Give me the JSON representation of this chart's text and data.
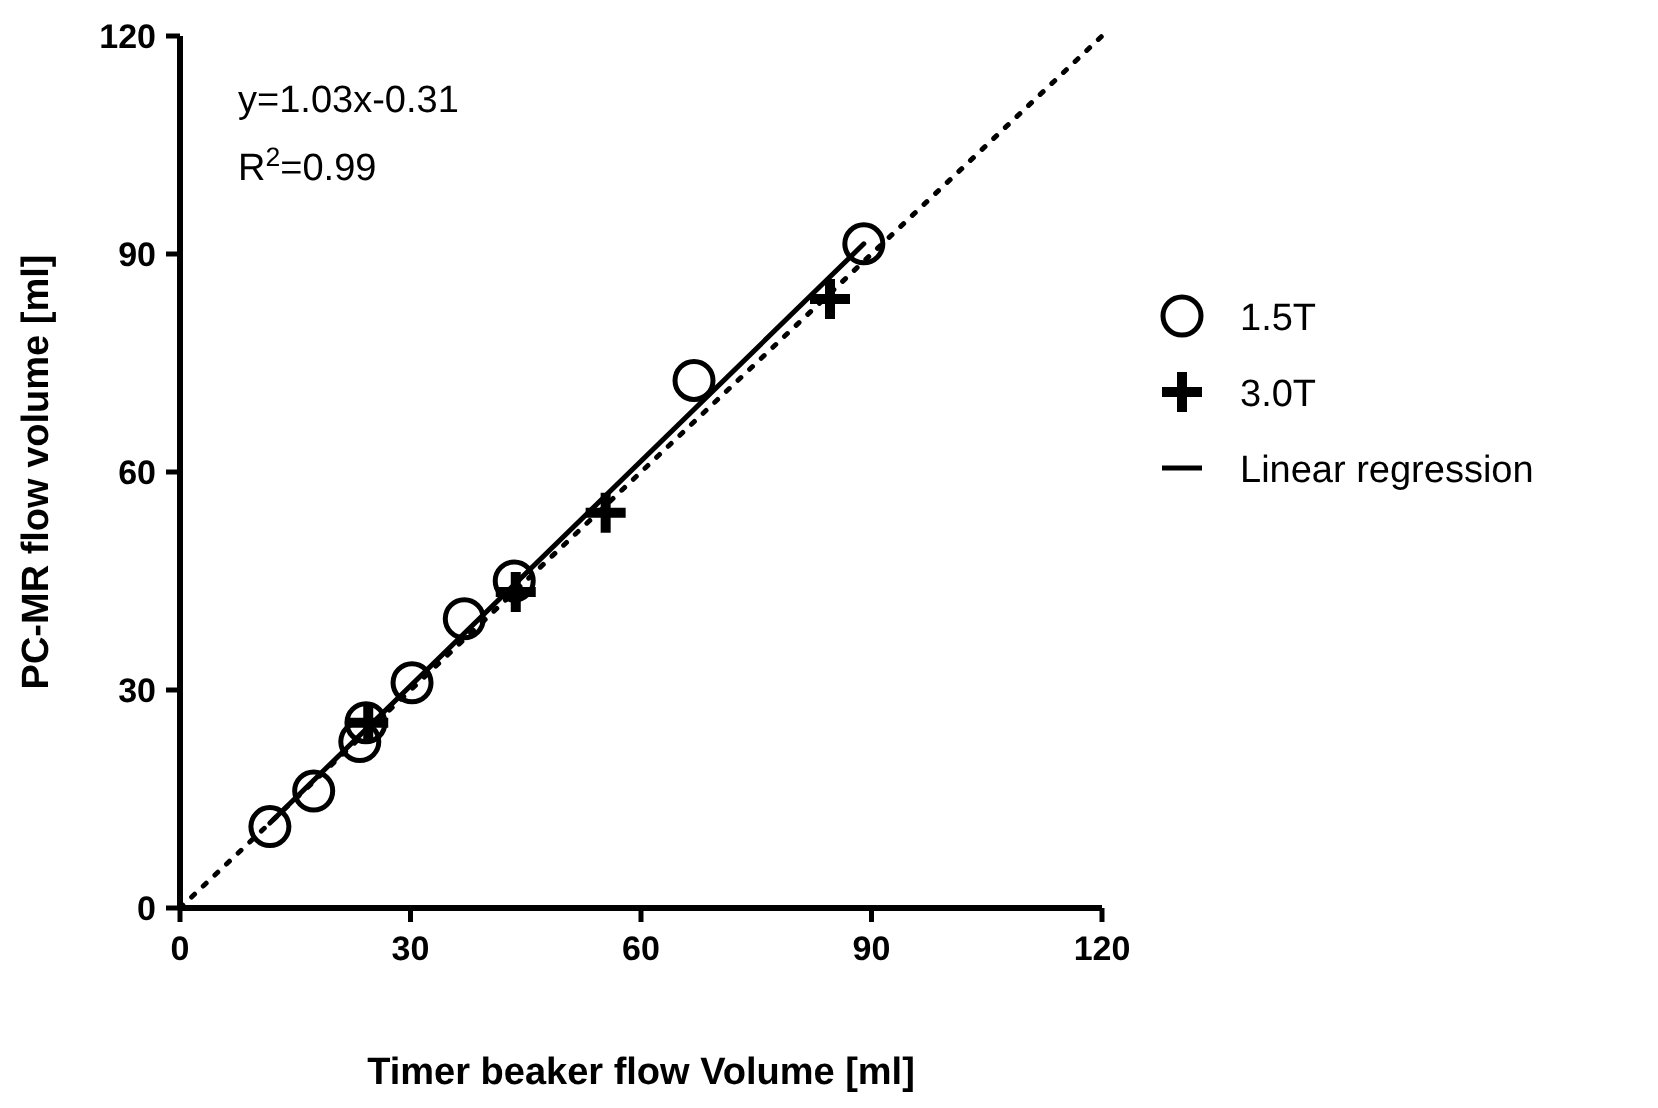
{
  "chart_data": {
    "type": "scatter",
    "xlabel": "Timer beaker flow Volume [ml]",
    "ylabel": "PC-MR flow volume [ml]",
    "xlim": [
      0,
      120
    ],
    "ylim": [
      0,
      120
    ],
    "xticks": [
      0,
      30,
      60,
      90,
      120
    ],
    "yticks": [
      0,
      30,
      60,
      90,
      120
    ],
    "grid": false,
    "legend": "right",
    "annotations": [
      "y=1.03x-0.31",
      "R$^{2}$=0.99"
    ],
    "series": [
      {
        "type": "line",
        "color": "#000000",
        "line_style": "dotted",
        "marker": "none",
        "x": [
          0,
          120
        ],
        "values": [
          0,
          120
        ]
      },
      {
        "name": "1.5T",
        "color": "#000000",
        "marker": "circle",
        "x": [
          11.7,
          17.4,
          23.4,
          24.2,
          30.2,
          37.0,
          43.5,
          66.9,
          89.0
        ],
        "values": [
          11.2,
          16.1,
          22.9,
          25.5,
          31.0,
          39.8,
          45.0,
          72.6,
          91.4
        ]
      },
      {
        "name": "3.0T",
        "color": "#000000",
        "marker": "cross",
        "x": [
          24.5,
          43.7,
          55.4,
          84.6
        ],
        "values": [
          25.5,
          43.5,
          54.4,
          83.8
        ]
      },
      {
        "type": "line",
        "name": "Linear regression",
        "color": "#000000",
        "line_style": "solid",
        "marker": "none",
        "x": [
          11.7,
          89
        ],
        "values": [
          11.7,
          91.4
        ]
      }
    ]
  }
}
